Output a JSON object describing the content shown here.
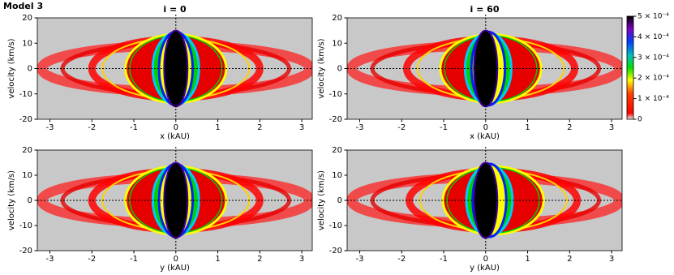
{
  "title": "Model 3",
  "chart_data": [
    {
      "type": "heatmap",
      "title": "i = 0",
      "xlabel": "x (kAU)",
      "ylabel": "velocity (km/s)",
      "xlim": [
        -3.3,
        3.25
      ],
      "ylim": [
        -20,
        20
      ],
      "xticks": [
        -3,
        -2,
        -1,
        0,
        1,
        2,
        3
      ],
      "yticks": [
        -20,
        -10,
        0,
        10,
        20
      ]
    },
    {
      "type": "heatmap",
      "title": "i = 60",
      "xlabel": "x (kAU)",
      "ylabel": "velocity (km/s)",
      "xlim": [
        -3.3,
        3.25
      ],
      "ylim": [
        -20,
        20
      ],
      "xticks": [
        -3,
        -2,
        -1,
        0,
        1,
        2,
        3
      ],
      "yticks": [
        -20,
        -10,
        0,
        10,
        20
      ]
    },
    {
      "type": "heatmap",
      "xlabel": "y (kAU)",
      "ylabel": "velocity (km/s)",
      "xlim": [
        -3.3,
        3.25
      ],
      "ylim": [
        -20,
        20
      ],
      "xticks": [
        -3,
        -2,
        -1,
        0,
        1,
        2,
        3
      ],
      "yticks": [
        -20,
        -10,
        0,
        10,
        20
      ]
    },
    {
      "type": "heatmap",
      "xlabel": "y (kAU)",
      "ylabel": "velocity (km/s)",
      "xlim": [
        -3.3,
        3.25
      ],
      "ylim": [
        -20,
        20
      ],
      "xticks": [
        -3,
        -2,
        -1,
        0,
        1,
        2,
        3
      ],
      "yticks": [
        -20,
        -10,
        0,
        10,
        20
      ]
    }
  ],
  "colorbar": {
    "lim": [
      0,
      0.0005
    ],
    "ticks": [
      0,
      {
        "value": 0.0001,
        "label": "1 × 10⁻⁴"
      },
      {
        "value": 0.0002,
        "label": "2 × 10⁻⁴"
      },
      {
        "value": 0.0003,
        "label": "3 × 10⁻⁴"
      },
      {
        "value": 0.0004,
        "label": "4 × 10⁻⁴"
      },
      {
        "value": 0.0005,
        "label": "5 × 10⁻⁴"
      }
    ]
  }
}
